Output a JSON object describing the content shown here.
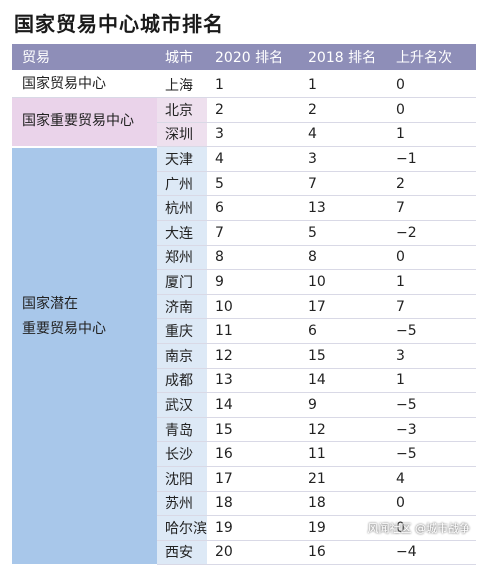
{
  "title": "国家贸易中心城市排名",
  "headers": [
    "贸易",
    "城市",
    "2020 排名",
    "2018 排名",
    "上升名次"
  ],
  "groups": [
    {
      "label_lines": [
        "国家贸易中心"
      ],
      "rows": [
        {
          "city": "上海",
          "r2020": "1",
          "r2018": "1",
          "change": "0"
        }
      ]
    },
    {
      "label_lines": [
        "国家重要贸易中心"
      ],
      "rows": [
        {
          "city": "北京",
          "r2020": "2",
          "r2018": "2",
          "change": "0"
        },
        {
          "city": "深圳",
          "r2020": "3",
          "r2018": "4",
          "change": "1"
        }
      ]
    },
    {
      "label_lines": [
        "国家潜在",
        "重要贸易中心"
      ],
      "rows": [
        {
          "city": "天津",
          "r2020": "4",
          "r2018": "3",
          "change": "−1"
        },
        {
          "city": "广州",
          "r2020": "5",
          "r2018": "7",
          "change": "2"
        },
        {
          "city": "杭州",
          "r2020": "6",
          "r2018": "13",
          "change": "7"
        },
        {
          "city": "大连",
          "r2020": "7",
          "r2018": "5",
          "change": "−2"
        },
        {
          "city": "郑州",
          "r2020": "8",
          "r2018": "8",
          "change": "0"
        },
        {
          "city": "厦门",
          "r2020": "9",
          "r2018": "10",
          "change": "1"
        },
        {
          "city": "济南",
          "r2020": "10",
          "r2018": "17",
          "change": "7"
        },
        {
          "city": "重庆",
          "r2020": "11",
          "r2018": "6",
          "change": "−5"
        },
        {
          "city": "南京",
          "r2020": "12",
          "r2018": "15",
          "change": "3"
        },
        {
          "city": "成都",
          "r2020": "13",
          "r2018": "14",
          "change": "1"
        },
        {
          "city": "武汉",
          "r2020": "14",
          "r2018": "9",
          "change": "−5"
        },
        {
          "city": "青岛",
          "r2020": "15",
          "r2018": "12",
          "change": "−3"
        },
        {
          "city": "长沙",
          "r2020": "16",
          "r2018": "11",
          "change": "−5"
        },
        {
          "city": "沈阳",
          "r2020": "17",
          "r2018": "21",
          "change": "4"
        },
        {
          "city": "苏州",
          "r2020": "18",
          "r2018": "18",
          "change": "0"
        },
        {
          "city": "哈尔滨",
          "r2020": "19",
          "r2018": "19",
          "change": "0"
        },
        {
          "city": "西安",
          "r2020": "20",
          "r2018": "16",
          "change": "−4"
        }
      ]
    }
  ],
  "watermark": "风闻社区 @城市战争"
}
